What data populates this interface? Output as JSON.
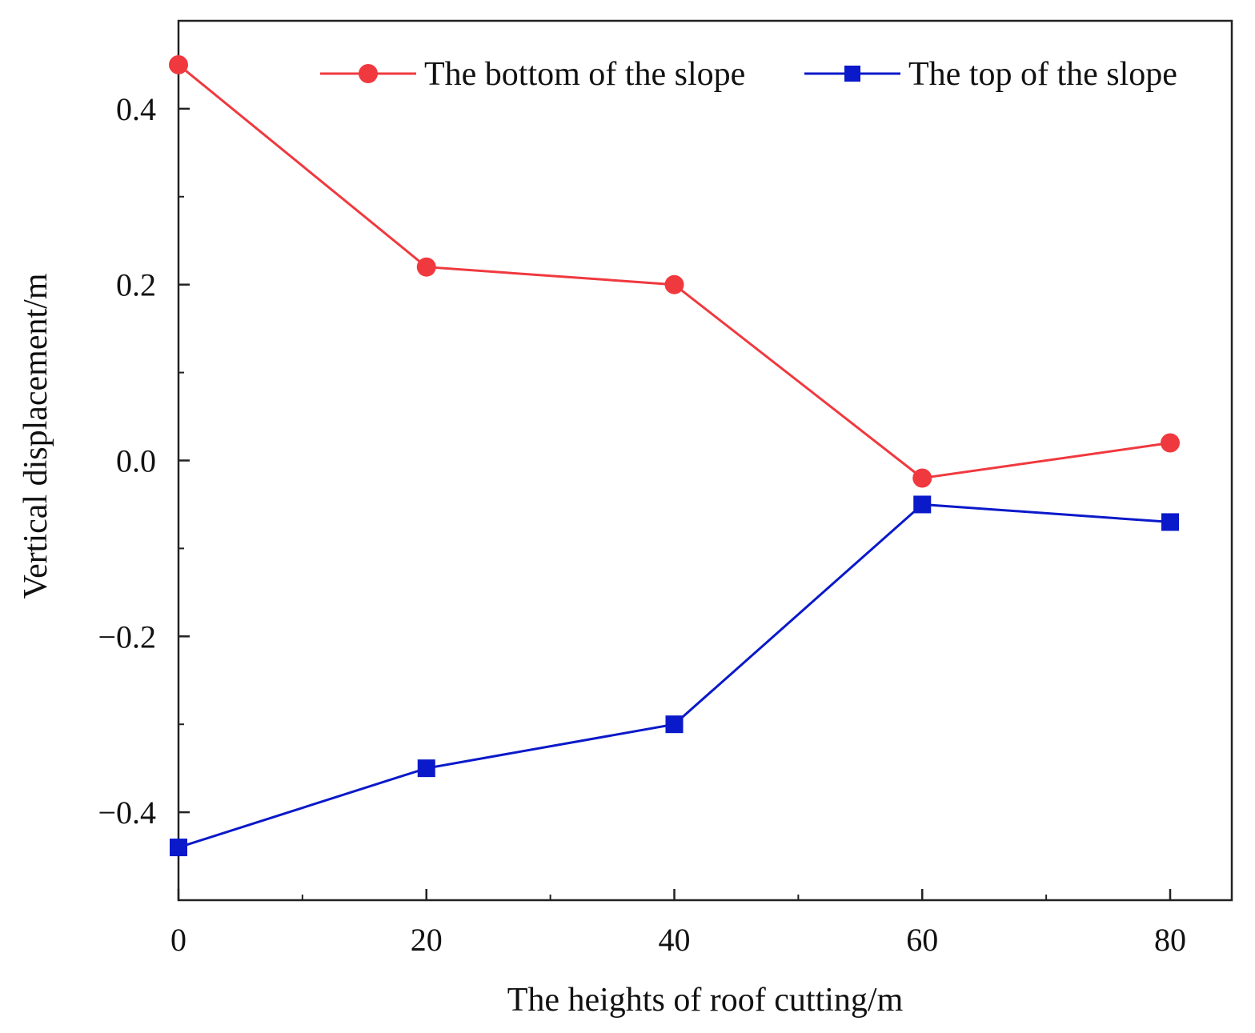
{
  "colors": {
    "bottom": "#f0393e",
    "top": "#0a19c9",
    "axis": "#222222",
    "background": "#ffffff"
  },
  "chart_data": {
    "type": "line",
    "title": "",
    "xlabel": "The heights of roof cutting/m",
    "ylabel": "Vertical displacement/m",
    "x": [
      0,
      20,
      40,
      60,
      80
    ],
    "xlim": [
      0,
      85
    ],
    "ylim": [
      -0.5,
      0.5
    ],
    "x_ticks": [
      0,
      20,
      40,
      60,
      80
    ],
    "x_tick_labels": [
      "0",
      "20",
      "40",
      "60",
      "80"
    ],
    "y_ticks": [
      -0.4,
      -0.2,
      0.0,
      0.2,
      0.4
    ],
    "y_tick_labels": [
      "−0.4",
      "−0.2",
      "0.0",
      "0.2",
      "0.4"
    ],
    "grid": false,
    "legend_position": "top-right",
    "series": [
      {
        "name": "The bottom of the slope",
        "marker": "circle",
        "color": "#f0393e",
        "values": [
          0.45,
          0.22,
          0.2,
          -0.02,
          0.02
        ]
      },
      {
        "name": "The top of the slope",
        "marker": "square",
        "color": "#0a19c9",
        "values": [
          -0.44,
          -0.35,
          -0.3,
          -0.05,
          -0.07
        ]
      }
    ]
  }
}
